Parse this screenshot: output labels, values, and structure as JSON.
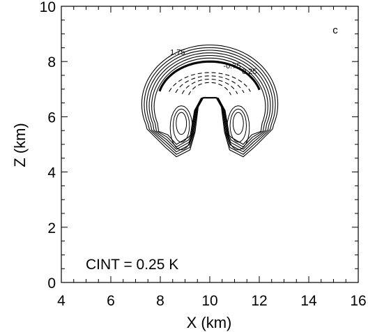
{
  "panel_label": "c",
  "annotation": "CINT = 0.25 K",
  "chart_data": {
    "type": "contour",
    "xlabel": "X (km)",
    "ylabel": "Z (km)",
    "xlim": [
      4,
      16
    ],
    "ylim": [
      0,
      10
    ],
    "xticks": [
      4,
      6,
      8,
      10,
      12,
      14,
      16
    ],
    "yticks": [
      0,
      2,
      4,
      6,
      8,
      10
    ],
    "contour_interval": "0.25 K",
    "grid": false,
    "inline_labels": [
      {
        "text": "1.75",
        "x": 8.7,
        "y": 8.25
      },
      {
        "text": "-0.75",
        "x": 10.9,
        "y": 7.75
      },
      {
        "text": "0.25",
        "x": 11.6,
        "y": 7.55
      }
    ],
    "feature": {
      "description_free_geometry": "symmetric thermal cap",
      "center_x": 10.0,
      "outer_radius_x": 2.75,
      "cap_top_z": 8.6,
      "stem_bottom_z": 4.55,
      "left_stem_center_x": 8.75,
      "right_stem_center_x": 11.25,
      "solid_levels": 6,
      "dashed_levels": 4
    }
  }
}
